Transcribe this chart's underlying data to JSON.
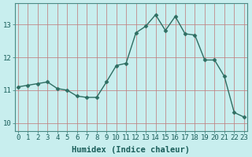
{
  "x": [
    0,
    1,
    2,
    3,
    4,
    5,
    6,
    7,
    8,
    9,
    10,
    11,
    12,
    13,
    14,
    15,
    16,
    17,
    18,
    19,
    20,
    21,
    22,
    23
  ],
  "y": [
    11.1,
    11.15,
    11.2,
    11.25,
    11.05,
    11.0,
    10.82,
    10.78,
    10.78,
    11.25,
    11.75,
    11.82,
    12.75,
    12.95,
    13.3,
    12.82,
    13.25,
    12.72,
    12.68,
    11.92,
    11.92,
    11.42,
    10.32,
    10.18
  ],
  "line_color": "#2e6e62",
  "marker": "D",
  "markersize": 2.5,
  "linewidth": 1.0,
  "background_color": "#c8eeee",
  "grid_color": "#c08080",
  "xlabel": "Humidex (Indice chaleur)",
  "xlabel_fontsize": 7.5,
  "tick_fontsize": 6.5,
  "ylim": [
    9.75,
    13.65
  ],
  "yticks": [
    10,
    11,
    12,
    13
  ],
  "xticks": [
    0,
    1,
    2,
    3,
    4,
    5,
    6,
    7,
    8,
    9,
    10,
    11,
    12,
    13,
    14,
    15,
    16,
    17,
    18,
    19,
    20,
    21,
    22,
    23
  ],
  "xlim": [
    -0.3,
    23.3
  ]
}
